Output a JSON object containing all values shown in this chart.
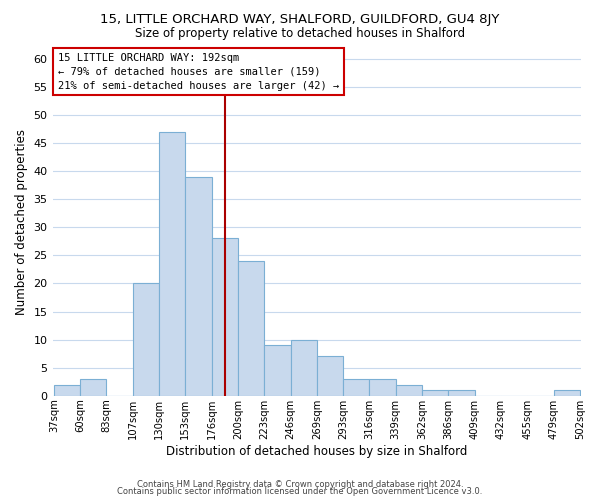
{
  "title": "15, LITTLE ORCHARD WAY, SHALFORD, GUILDFORD, GU4 8JY",
  "subtitle": "Size of property relative to detached houses in Shalford",
  "xlabel": "Distribution of detached houses by size in Shalford",
  "ylabel": "Number of detached properties",
  "bar_color": "#c8d9ed",
  "bar_edge_color": "#7bafd4",
  "background_color": "#ffffff",
  "grid_color": "#c8d9ed",
  "bin_labels": [
    "37sqm",
    "60sqm",
    "83sqm",
    "107sqm",
    "130sqm",
    "153sqm",
    "176sqm",
    "200sqm",
    "223sqm",
    "246sqm",
    "269sqm",
    "293sqm",
    "316sqm",
    "339sqm",
    "362sqm",
    "386sqm",
    "409sqm",
    "432sqm",
    "455sqm",
    "479sqm",
    "502sqm"
  ],
  "values": [
    2,
    3,
    0,
    20,
    47,
    39,
    28,
    24,
    9,
    10,
    7,
    3,
    3,
    2,
    1,
    1,
    0,
    0,
    0,
    1
  ],
  "annotation_line1": "15 LITTLE ORCHARD WAY: 192sqm",
  "annotation_line2": "← 79% of detached houses are smaller (159)",
  "annotation_line3": "21% of semi-detached houses are larger (42) →",
  "annotation_box_color": "#ffffff",
  "annotation_box_edge_color": "#cc0000",
  "red_line_x": 6.5,
  "ylim": [
    0,
    62
  ],
  "yticks": [
    0,
    5,
    10,
    15,
    20,
    25,
    30,
    35,
    40,
    45,
    50,
    55,
    60
  ],
  "footer1": "Contains HM Land Registry data © Crown copyright and database right 2024.",
  "footer2": "Contains public sector information licensed under the Open Government Licence v3.0."
}
